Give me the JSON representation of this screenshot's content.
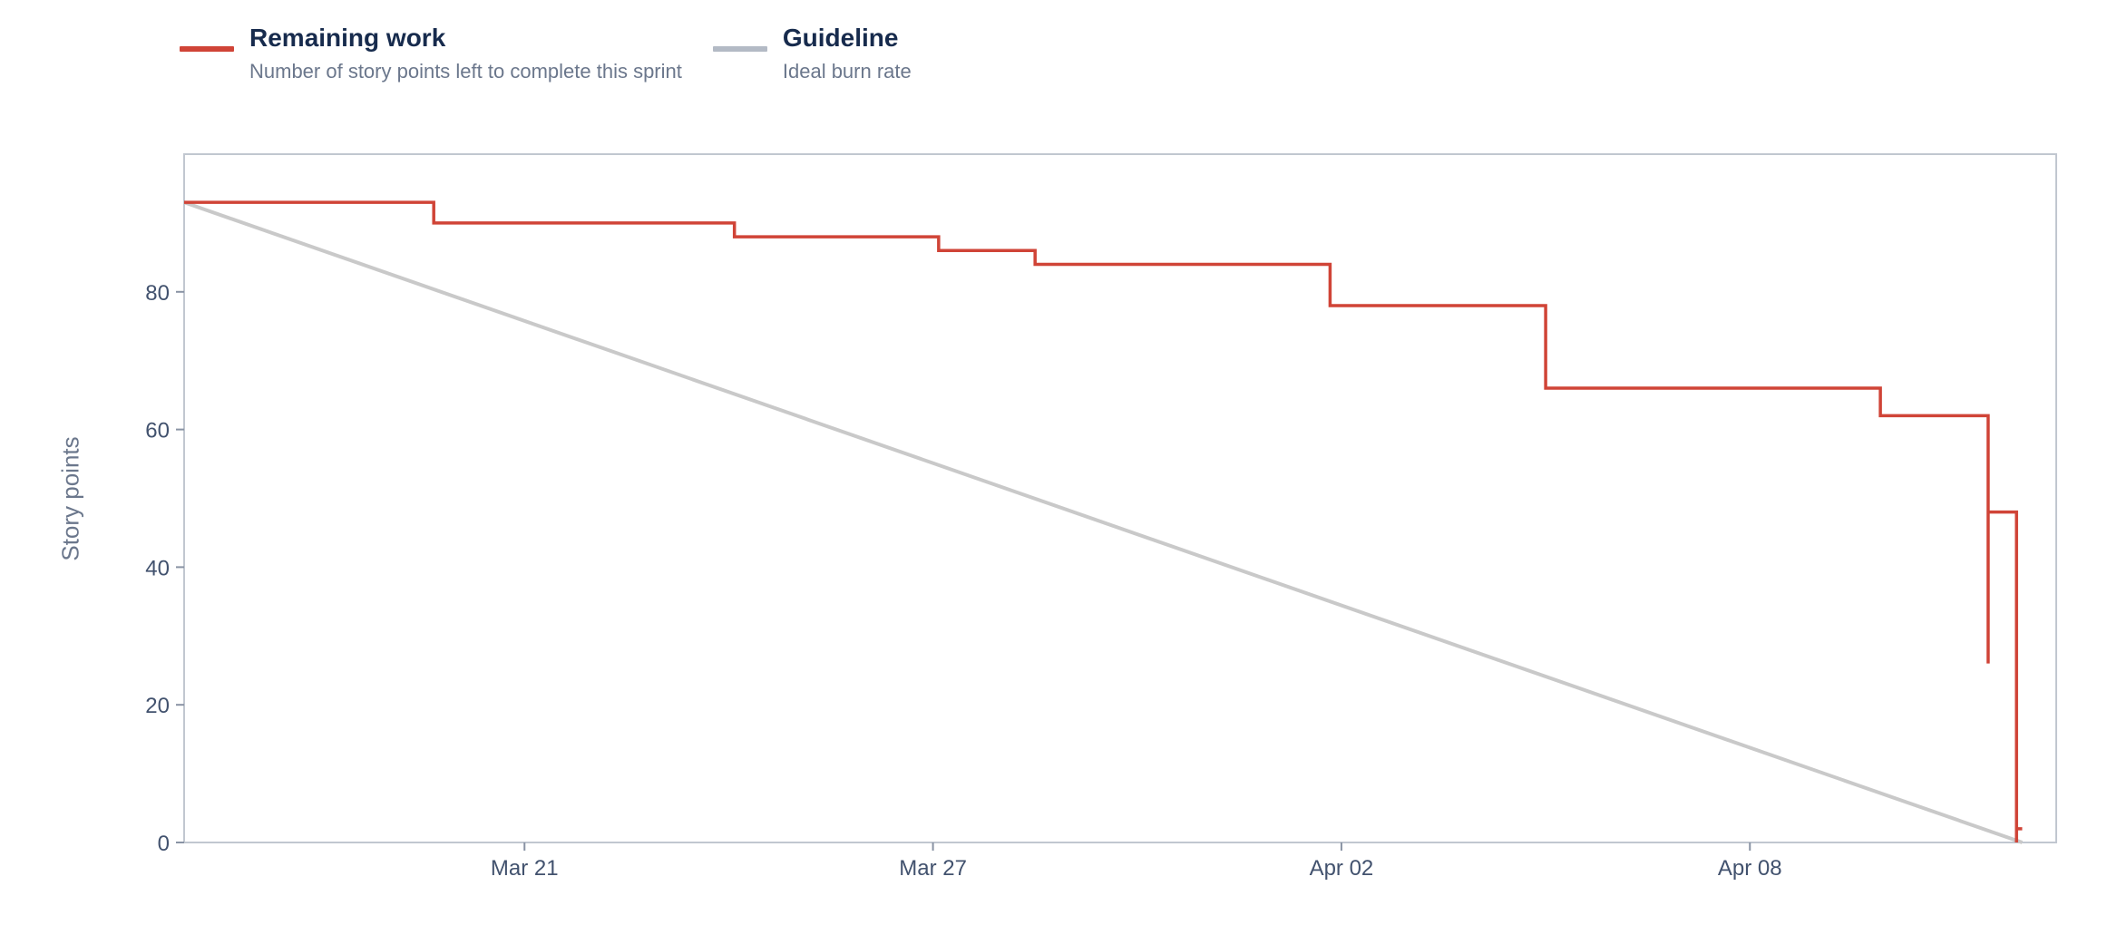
{
  "legend": [
    {
      "label": "Remaining work",
      "description": "Number of story points left to complete this sprint",
      "color": "#d04437"
    },
    {
      "label": "Guideline",
      "description": "Ideal burn rate",
      "color": "#b3bac5"
    }
  ],
  "chart_data": {
    "type": "line",
    "ylabel": "Story points",
    "xlabel": "",
    "ylim": [
      0,
      100
    ],
    "yticks": [
      0,
      20,
      40,
      60,
      80
    ],
    "xlim": [
      "Mar 16",
      "Apr 12 12:00"
    ],
    "xticks": [
      {
        "label": "Mar 21",
        "date": "2024-03-21"
      },
      {
        "label": "Mar 27",
        "date": "2024-03-27"
      },
      {
        "label": "Apr 02",
        "date": "2024-04-02"
      },
      {
        "label": "Apr 08",
        "date": "2024-04-08"
      }
    ],
    "grid": false,
    "legend_position": "top-left",
    "series": [
      {
        "name": "Remaining work",
        "color": "#d04437",
        "step": true,
        "points": [
          {
            "x": "2024-03-16 00:00",
            "y": 93
          },
          {
            "x": "2024-03-19 16:00",
            "y": 93
          },
          {
            "x": "2024-03-19 16:00",
            "y": 90
          },
          {
            "x": "2024-03-24 02:00",
            "y": 90
          },
          {
            "x": "2024-03-24 02:00",
            "y": 88
          },
          {
            "x": "2024-03-27 02:00",
            "y": 88
          },
          {
            "x": "2024-03-27 02:00",
            "y": 86
          },
          {
            "x": "2024-03-28 12:00",
            "y": 86
          },
          {
            "x": "2024-03-28 12:00",
            "y": 84
          },
          {
            "x": "2024-04-01 20:00",
            "y": 84
          },
          {
            "x": "2024-04-01 20:00",
            "y": 78
          },
          {
            "x": "2024-04-05 00:00",
            "y": 78
          },
          {
            "x": "2024-04-05 00:00",
            "y": 66
          },
          {
            "x": "2024-04-09 22:00",
            "y": 66
          },
          {
            "x": "2024-04-09 22:00",
            "y": 62
          },
          {
            "x": "2024-04-11 12:00",
            "y": 62
          },
          {
            "x": "2024-04-11 12:00",
            "y": 26
          },
          {
            "x": "2024-04-11 12:00",
            "y": 48
          },
          {
            "x": "2024-04-11 22:00",
            "y": 48
          },
          {
            "x": "2024-04-11 22:00",
            "y": 0
          },
          {
            "x": "2024-04-11 22:00",
            "y": 2
          },
          {
            "x": "2024-04-12 00:00",
            "y": 2
          }
        ]
      },
      {
        "name": "Guideline",
        "color": "#c9c9c9",
        "points": [
          {
            "x": "2024-03-16 00:00",
            "y": 93
          },
          {
            "x": "2024-04-12 00:00",
            "y": 0
          }
        ]
      }
    ]
  }
}
